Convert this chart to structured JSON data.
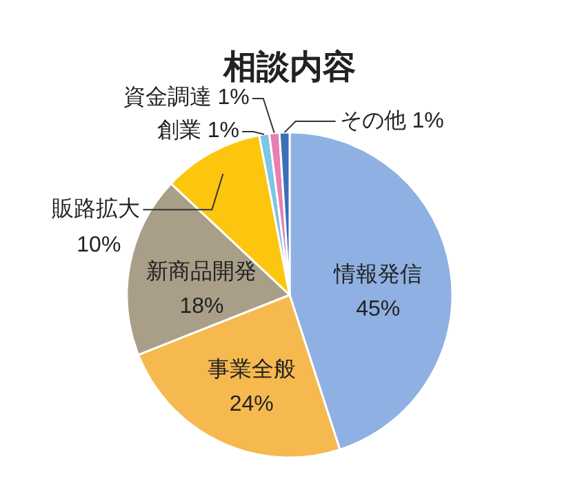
{
  "chart_data": {
    "type": "pie",
    "title": "相談内容",
    "categories": [
      "情報発信",
      "事業全般",
      "新商品開発",
      "販路拡大",
      "創業",
      "資金調達",
      "その他"
    ],
    "values": [
      45,
      24,
      18,
      10,
      1,
      1,
      1
    ],
    "value_labels": [
      "45%",
      "24%",
      "18%",
      "10%",
      "1%",
      "1%",
      "1%"
    ],
    "colors": [
      "#8fb0e2",
      "#f6b94f",
      "#a99f88",
      "#fcc60f",
      "#7cc6e6",
      "#e77fb3",
      "#3b6fb6"
    ]
  }
}
